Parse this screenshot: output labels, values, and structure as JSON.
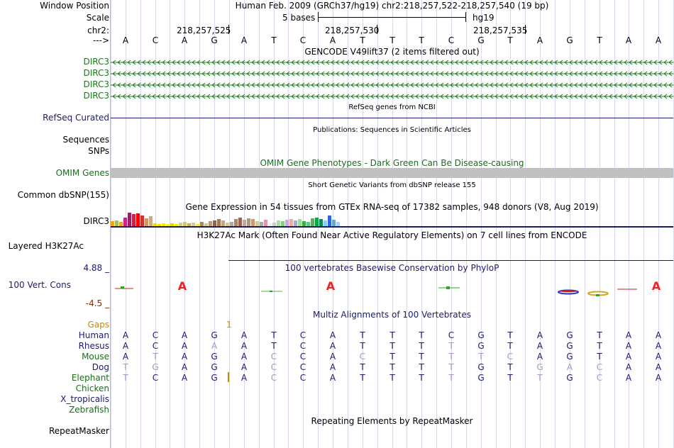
{
  "header": {
    "window_position_label": "Window Position",
    "window_position_value": "Human Feb. 2009 (GRCh37/hg19)   chr2:218,257,522-218,257,540 (19 bp)",
    "scale_label": "Scale",
    "scale_value": "5 bases",
    "scale_db": "hg19",
    "chr_label": "chr2:",
    "positions": [
      "218,257,525",
      "218,257,530",
      "218,257,535"
    ],
    "strand_label": "--->",
    "bases": [
      "A",
      "C",
      "A",
      "G",
      "A",
      "T",
      "C",
      "A",
      "T",
      "T",
      "T",
      "C",
      "G",
      "T",
      "A",
      "G",
      "T",
      "A",
      "A"
    ]
  },
  "tracks": {
    "gencode": {
      "title": "GENCODE V49lift37 (2 items filtered out)",
      "items": [
        "DIRC3",
        "DIRC3",
        "DIRC3",
        "DIRC3"
      ],
      "color": "#1a7a1a"
    },
    "refseq": {
      "title": "RefSeq genes from NCBI",
      "label": "RefSeq Curated",
      "color": "#1a1a6e"
    },
    "publications": {
      "title": "Publications: Sequences in Scientific Articles",
      "labels": [
        "Sequences",
        "SNPs"
      ]
    },
    "omim": {
      "title": "OMIM Gene Phenotypes - Dark Green Can Be Disease-causing",
      "label": "OMIM Genes",
      "color": "#1a6e1a"
    },
    "dbsnp": {
      "title": "Short Genetic Variants from dbSNP release 155",
      "label": "Common dbSNP(155)"
    },
    "gtex": {
      "title": "Gene Expression in 54 tissues from GTEx RNA-seq of 17382 samples, 948 donors (V8, Aug 2019)",
      "label": "DIRC3",
      "bar_values": [
        0.35,
        0.4,
        0.3,
        0.6,
        0.95,
        0.85,
        0.9,
        0.75,
        0.55,
        0.7,
        0.2,
        0.15,
        0.2,
        0.15,
        0.2,
        0.15,
        0.25,
        0.3,
        0.2,
        0.25,
        0.15,
        0.3,
        0.2,
        0.35,
        0.4,
        0.5,
        0.4,
        0.25,
        0.3,
        0.5,
        0.6,
        0.45,
        0.55,
        0.5,
        0.35,
        0.3,
        0.45,
        0.2,
        0.25,
        0.4,
        0.35,
        0.45,
        0.5,
        0.4,
        0.5,
        0.35,
        0.3,
        0.55,
        0.6,
        0.5,
        0.4,
        0.75,
        0.45,
        0.3
      ],
      "bar_colors": [
        "#f5a21d",
        "#a0c060",
        "#f5a21d",
        "#cc2288",
        "#992266",
        "#cc2244",
        "#ff0000",
        "#cc3333",
        "#cc9966",
        "#ccaa88",
        "#eedd00",
        "#eedd00",
        "#eeee00",
        "#eeee44",
        "#dddd00",
        "#eeee00",
        "#ccccaa",
        "#cccc66",
        "#ccaa66",
        "#ccccaa",
        "#eeee44",
        "#aa8866",
        "#cccc99",
        "#bb9977",
        "#886655",
        "#aa7755",
        "#bbaa88",
        "#cccc99",
        "#aaaaaa",
        "#aa8866",
        "#996655",
        "#bbaa99",
        "#aa9988",
        "#cc9977",
        "#cccc99",
        "#aaaaaa",
        "#dd99aa",
        "#eeeeee",
        "#cccccc",
        "#aaddaa",
        "#88cc88",
        "#ccaadd",
        "#eeaaaa",
        "#aaaacc",
        "#99dd99",
        "#44aa44",
        "#55cc88",
        "#66aa66",
        "#00aa44",
        "#118855",
        "#88ccff",
        "#3366dd",
        "#66aacc",
        "#aaccff"
      ]
    },
    "h3k27ac": {
      "title": "H3K27Ac Mark (Often Found Near Active Regulatory Elements) on 7 cell lines from ENCODE",
      "label": "Layered H3K27Ac"
    },
    "conservation": {
      "title": "100 vertebrates Basewise Conservation by PhyloP",
      "label": "100 Vert. Cons",
      "max_label": "4.88 _",
      "min_label": "-4.5 _"
    },
    "multiz": {
      "title": "Multiz Alignments of 100 Vertebrates",
      "gaps_label": "Gaps",
      "gap_count": "1",
      "species": [
        {
          "name": "Human",
          "bases": [
            "A",
            "C",
            "A",
            "G",
            "A",
            "T",
            "C",
            "A",
            "T",
            "T",
            "T",
            "C",
            "G",
            "T",
            "A",
            "G",
            "T",
            "A",
            "A"
          ],
          "faint": [],
          "color": "#1a1a6e"
        },
        {
          "name": "Rhesus",
          "bases": [
            "A",
            "C",
            "A",
            "A",
            "A",
            "T",
            "C",
            "A",
            "T",
            "T",
            "T",
            "T",
            "G",
            "T",
            "A",
            "G",
            "T",
            "A",
            "A"
          ],
          "faint": [
            3,
            11
          ],
          "color": "#1a1a6e"
        },
        {
          "name": "Mouse",
          "bases": [
            "A",
            "T",
            "A",
            "G",
            "A",
            "C",
            "C",
            "A",
            "C",
            "T",
            "T",
            "T",
            "T",
            "C",
            "A",
            "G",
            "T",
            "A",
            "A"
          ],
          "faint": [
            1,
            5,
            8,
            11,
            12,
            13
          ],
          "color": "#1a6e1a"
        },
        {
          "name": "Dog",
          "bases": [
            "T",
            "G",
            "A",
            "G",
            "A",
            "C",
            "C",
            "A",
            "T",
            "T",
            "T",
            "T",
            "G",
            "T",
            "G",
            "A",
            "C",
            "A",
            "A"
          ],
          "faint": [
            0,
            1,
            5,
            11,
            14,
            15,
            16
          ],
          "color": "#1a1a6e"
        },
        {
          "name": "Elephant",
          "bases": [
            "T",
            "C",
            "A",
            "G",
            "A",
            "C",
            "C",
            "A",
            "T",
            "T",
            "T",
            "T",
            "G",
            "T",
            "T",
            "G",
            "C",
            "A",
            "A"
          ],
          "faint": [
            0,
            5,
            11,
            14,
            16
          ],
          "color": "#1a6e1a"
        },
        {
          "name": "Chicken",
          "bases": [],
          "faint": [],
          "color": "#1a6e1a"
        },
        {
          "name": "X_tropicalis",
          "bases": [],
          "faint": [],
          "color": "#1a1a6e"
        },
        {
          "name": "Zebrafish",
          "bases": [],
          "faint": [],
          "color": "#1a6e1a"
        }
      ]
    },
    "repeatmasker": {
      "title": "Repeating Elements by RepeatMasker",
      "label": "RepeatMasker"
    }
  },
  "colors": {
    "guide": "#d8d8f0",
    "track_blue": "#1a1a6e",
    "track_green": "#1a7a1a",
    "omim_bar": "#c0c0c0",
    "gaps": "#cc8800",
    "cons_max": "#1a1a6e",
    "cons_min": "#8b2500"
  }
}
